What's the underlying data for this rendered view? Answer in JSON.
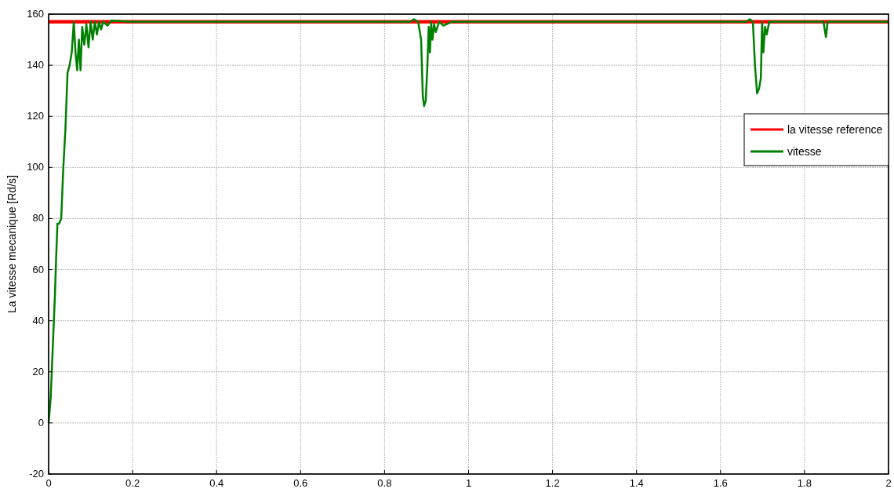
{
  "chart_data": {
    "type": "line",
    "ylabel": "La vitesse mecanique [Rd/s]",
    "xlim": [
      0,
      2
    ],
    "ylim": [
      -20,
      160
    ],
    "xticks": [
      0,
      0.2,
      0.4,
      0.6,
      0.8,
      1,
      1.2,
      1.4,
      1.6,
      1.8,
      2
    ],
    "yticks": [
      -20,
      0,
      20,
      40,
      60,
      80,
      100,
      120,
      140,
      160
    ],
    "grid": true,
    "legend": "right",
    "series": [
      {
        "name": "la vitesse reference",
        "color": "#ff0000",
        "x": [
          0,
          2
        ],
        "values": [
          157,
          157
        ]
      },
      {
        "name": "vitesse",
        "color": "#008000",
        "x": [
          0,
          0.005,
          0.01,
          0.015,
          0.018,
          0.021,
          0.025,
          0.03,
          0.035,
          0.04,
          0.045,
          0.05,
          0.055,
          0.06,
          0.064,
          0.068,
          0.072,
          0.076,
          0.08,
          0.085,
          0.09,
          0.095,
          0.1,
          0.105,
          0.11,
          0.115,
          0.12,
          0.125,
          0.13,
          0.14,
          0.15,
          0.2,
          0.3,
          0.4,
          0.5,
          0.6,
          0.7,
          0.8,
          0.86,
          0.87,
          0.88,
          0.887,
          0.891,
          0.894,
          0.898,
          0.902,
          0.905,
          0.908,
          0.911,
          0.914,
          0.918,
          0.922,
          0.93,
          0.94,
          0.96,
          1.0,
          1.2,
          1.4,
          1.6,
          1.66,
          1.67,
          1.677,
          1.682,
          1.687,
          1.692,
          1.696,
          1.699,
          1.702,
          1.706,
          1.71,
          1.716,
          1.73,
          1.8,
          1.845,
          1.851,
          1.855,
          1.86,
          1.9,
          2
        ],
        "values": [
          0,
          10,
          30,
          50,
          65,
          78,
          78,
          80,
          100,
          115,
          137,
          140,
          145,
          157,
          145,
          138,
          150,
          138,
          155,
          148,
          156,
          147,
          157,
          150,
          157,
          152,
          157,
          154,
          157,
          155.5,
          157.5,
          157,
          157,
          157,
          157,
          157,
          157,
          157,
          157,
          158,
          157,
          150,
          128,
          124,
          126,
          140,
          155,
          145,
          157,
          150,
          156,
          153,
          157,
          155.5,
          157,
          157,
          157,
          157,
          157,
          157,
          158,
          157,
          140,
          129,
          131,
          135,
          157,
          145,
          155,
          152,
          157,
          157,
          157,
          157,
          151,
          157,
          157,
          157,
          157
        ]
      }
    ]
  }
}
